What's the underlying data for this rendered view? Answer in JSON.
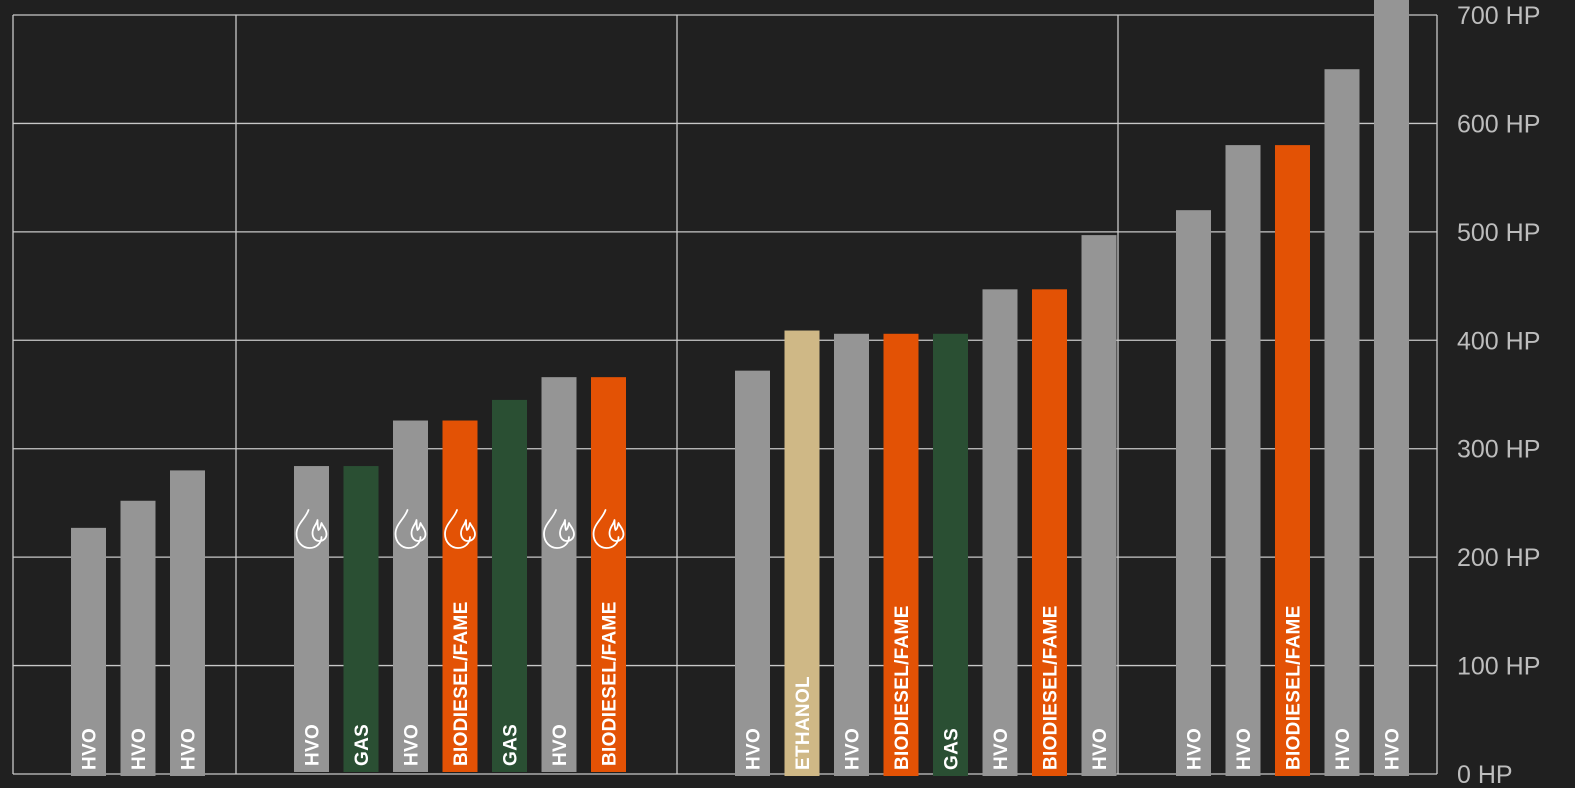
{
  "chart_data": {
    "type": "bar",
    "title": "",
    "xlabel": "",
    "ylabel": "",
    "ylim": [
      0,
      700
    ],
    "y_ticks": [
      0,
      100,
      200,
      300,
      400,
      500,
      600,
      700
    ],
    "y_tick_labels": [
      "0 HP",
      "100 HP",
      "200 HP",
      "300 HP",
      "400 HP",
      "500 HP",
      "600 HP",
      "700 HP"
    ],
    "grid": true,
    "fuel_colors": {
      "HVO": "#959595",
      "GAS": "#2a4f33",
      "BIODIESEL/FAME": "#e35205",
      "ETHANOL": "#cfb886"
    },
    "groups": [
      {
        "bars": [
          {
            "fuel": "HVO",
            "value": 227
          },
          {
            "fuel": "HVO",
            "value": 252
          },
          {
            "fuel": "HVO",
            "value": 280
          }
        ]
      },
      {
        "bars": [
          {
            "fuel": "HVO",
            "value": 284,
            "icon": "flame-drop-icon"
          },
          {
            "fuel": "GAS",
            "value": 284
          },
          {
            "fuel": "HVO",
            "value": 326,
            "icon": "flame-drop-icon"
          },
          {
            "fuel": "BIODIESEL/FAME",
            "value": 326,
            "icon": "flame-drop-icon"
          },
          {
            "fuel": "GAS",
            "value": 345
          },
          {
            "fuel": "HVO",
            "value": 366,
            "icon": "flame-drop-icon"
          },
          {
            "fuel": "BIODIESEL/FAME",
            "value": 366,
            "icon": "flame-drop-icon"
          }
        ]
      },
      {
        "bars": [
          {
            "fuel": "HVO",
            "value": 372
          },
          {
            "fuel": "ETHANOL",
            "value": 409
          },
          {
            "fuel": "HVO",
            "value": 406
          },
          {
            "fuel": "BIODIESEL/FAME",
            "value": 406
          },
          {
            "fuel": "GAS",
            "value": 406
          },
          {
            "fuel": "HVO",
            "value": 447
          },
          {
            "fuel": "BIODIESEL/FAME",
            "value": 447
          },
          {
            "fuel": "HVO",
            "value": 497
          }
        ]
      },
      {
        "bars": [
          {
            "fuel": "HVO",
            "value": 520
          },
          {
            "fuel": "HVO",
            "value": 580
          },
          {
            "fuel": "BIODIESEL/FAME",
            "value": 580
          },
          {
            "fuel": "HVO",
            "value": 650
          },
          {
            "fuel": "HVO",
            "value": 715
          }
        ]
      }
    ]
  }
}
